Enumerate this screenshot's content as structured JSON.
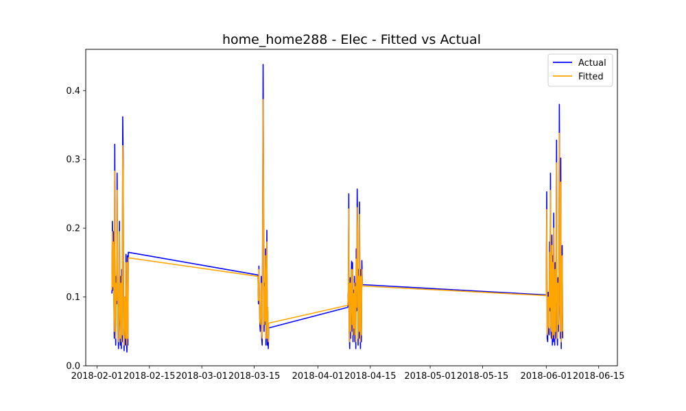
{
  "chart_data": {
    "type": "line",
    "title": "home_home288 - Elec - Fitted vs Actual",
    "xlabel": "",
    "ylabel": "",
    "x_axis": {
      "type": "date",
      "range": [
        "2018-01-29",
        "2018-06-20"
      ],
      "ticks": [
        "2018-02-01",
        "2018-02-15",
        "2018-03-01",
        "2018-03-15",
        "2018-04-01",
        "2018-04-15",
        "2018-05-01",
        "2018-05-15",
        "2018-06-01",
        "2018-06-15"
      ]
    },
    "y_axis": {
      "range": [
        0,
        0.46
      ],
      "ticks": [
        "0.0",
        "0.1",
        "0.2",
        "0.3",
        "0.4"
      ]
    },
    "grid": false,
    "legend_position": "top-right",
    "series": [
      {
        "name": "Actual",
        "color": "#0000ff",
        "points": [
          [
            "2018-02-05T00:00",
            0.105
          ],
          [
            "2018-02-05T03:00",
            0.21
          ],
          [
            "2018-02-05T06:00",
            0.11
          ],
          [
            "2018-02-05T09:00",
            0.195
          ],
          [
            "2018-02-05T12:00",
            0.1
          ],
          [
            "2018-02-05T15:00",
            0.04
          ],
          [
            "2018-02-05T18:00",
            0.322
          ],
          [
            "2018-02-05T21:00",
            0.08
          ],
          [
            "2018-02-06T00:00",
            0.03
          ],
          [
            "2018-02-06T03:00",
            0.13
          ],
          [
            "2018-02-06T06:00",
            0.09
          ],
          [
            "2018-02-06T09:00",
            0.28
          ],
          [
            "2018-02-06T12:00",
            0.15
          ],
          [
            "2018-02-06T15:00",
            0.05
          ],
          [
            "2018-02-06T18:00",
            0.025
          ],
          [
            "2018-02-06T21:00",
            0.06
          ],
          [
            "2018-02-07T00:00",
            0.21
          ],
          [
            "2018-02-07T03:00",
            0.09
          ],
          [
            "2018-02-07T06:00",
            0.03
          ],
          [
            "2018-02-07T09:00",
            0.13
          ],
          [
            "2018-02-07T12:00",
            0.025
          ],
          [
            "2018-02-07T15:00",
            0.14
          ],
          [
            "2018-02-07T18:00",
            0.035
          ],
          [
            "2018-02-07T21:00",
            0.362
          ],
          [
            "2018-02-08T00:00",
            0.3
          ],
          [
            "2018-02-08T03:00",
            0.05
          ],
          [
            "2018-02-08T06:00",
            0.022
          ],
          [
            "2018-02-08T09:00",
            0.1
          ],
          [
            "2018-02-08T12:00",
            0.08
          ],
          [
            "2018-02-08T15:00",
            0.03
          ],
          [
            "2018-02-08T18:00",
            0.162
          ],
          [
            "2018-02-08T21:00",
            0.035
          ],
          [
            "2018-02-09T00:00",
            0.02
          ],
          [
            "2018-02-09T03:00",
            0.16
          ],
          [
            "2018-02-09T06:00",
            0.03
          ],
          [
            "2018-02-09T09:00",
            0.165
          ],
          [
            "2018-03-16T00:00",
            0.132
          ],
          [
            "2018-03-16T03:00",
            0.09
          ],
          [
            "2018-03-16T06:00",
            0.145
          ],
          [
            "2018-03-16T09:00",
            0.1
          ],
          [
            "2018-03-16T12:00",
            0.06
          ],
          [
            "2018-03-16T15:00",
            0.05
          ],
          [
            "2018-03-16T18:00",
            0.08
          ],
          [
            "2018-03-16T21:00",
            0.13
          ],
          [
            "2018-03-17T00:00",
            0.04
          ],
          [
            "2018-03-17T03:00",
            0.03
          ],
          [
            "2018-03-17T06:00",
            0.22
          ],
          [
            "2018-03-17T09:00",
            0.438
          ],
          [
            "2018-03-17T12:00",
            0.26
          ],
          [
            "2018-03-17T15:00",
            0.05
          ],
          [
            "2018-03-17T18:00",
            0.12
          ],
          [
            "2018-03-17T21:00",
            0.06
          ],
          [
            "2018-03-18T00:00",
            0.17
          ],
          [
            "2018-03-18T03:00",
            0.03
          ],
          [
            "2018-03-18T06:00",
            0.09
          ],
          [
            "2018-03-18T09:00",
            0.197
          ],
          [
            "2018-03-18T12:00",
            0.03
          ],
          [
            "2018-03-18T15:00",
            0.08
          ],
          [
            "2018-03-18T18:00",
            0.025
          ],
          [
            "2018-03-18T21:00",
            0.055
          ],
          [
            "2018-04-09T00:00",
            0.085
          ],
          [
            "2018-04-09T03:00",
            0.11
          ],
          [
            "2018-04-09T06:00",
            0.25
          ],
          [
            "2018-04-09T09:00",
            0.05
          ],
          [
            "2018-04-09T12:00",
            0.025
          ],
          [
            "2018-04-09T15:00",
            0.128
          ],
          [
            "2018-04-09T18:00",
            0.04
          ],
          [
            "2018-04-09T21:00",
            0.12
          ],
          [
            "2018-04-10T00:00",
            0.152
          ],
          [
            "2018-04-10T03:00",
            0.05
          ],
          [
            "2018-04-10T06:00",
            0.15
          ],
          [
            "2018-04-10T09:00",
            0.035
          ],
          [
            "2018-04-10T12:00",
            0.11
          ],
          [
            "2018-04-10T15:00",
            0.045
          ],
          [
            "2018-04-10T18:00",
            0.13
          ],
          [
            "2018-04-10T21:00",
            0.035
          ],
          [
            "2018-04-11T00:00",
            0.12
          ],
          [
            "2018-04-11T03:00",
            0.025
          ],
          [
            "2018-04-11T06:00",
            0.17
          ],
          [
            "2018-04-11T09:00",
            0.08
          ],
          [
            "2018-04-11T12:00",
            0.257
          ],
          [
            "2018-04-11T15:00",
            0.2
          ],
          [
            "2018-04-11T18:00",
            0.03
          ],
          [
            "2018-04-11T21:00",
            0.14
          ],
          [
            "2018-04-12T00:00",
            0.04
          ],
          [
            "2018-04-12T03:00",
            0.238
          ],
          [
            "2018-04-12T06:00",
            0.06
          ],
          [
            "2018-04-12T09:00",
            0.025
          ],
          [
            "2018-04-12T12:00",
            0.14
          ],
          [
            "2018-04-12T15:00",
            0.035
          ],
          [
            "2018-04-12T18:00",
            0.153
          ],
          [
            "2018-04-12T21:00",
            0.118
          ],
          [
            "2018-06-01T00:00",
            0.103
          ],
          [
            "2018-06-01T03:00",
            0.253
          ],
          [
            "2018-06-01T06:00",
            0.04
          ],
          [
            "2018-06-01T09:00",
            0.035
          ],
          [
            "2018-06-01T12:00",
            0.107
          ],
          [
            "2018-06-01T15:00",
            0.05
          ],
          [
            "2018-06-01T18:00",
            0.045
          ],
          [
            "2018-06-01T21:00",
            0.18
          ],
          [
            "2018-06-02T00:00",
            0.08
          ],
          [
            "2018-06-02T03:00",
            0.28
          ],
          [
            "2018-06-02T06:00",
            0.05
          ],
          [
            "2018-06-02T09:00",
            0.04
          ],
          [
            "2018-06-02T12:00",
            0.19
          ],
          [
            "2018-06-02T15:00",
            0.03
          ],
          [
            "2018-06-02T18:00",
            0.16
          ],
          [
            "2018-06-02T21:00",
            0.035
          ],
          [
            "2018-06-03T00:00",
            0.222
          ],
          [
            "2018-06-03T03:00",
            0.05
          ],
          [
            "2018-06-03T06:00",
            0.03
          ],
          [
            "2018-06-03T09:00",
            0.15
          ],
          [
            "2018-06-03T12:00",
            0.04
          ],
          [
            "2018-06-03T15:00",
            0.15
          ],
          [
            "2018-06-03T18:00",
            0.328
          ],
          [
            "2018-06-03T21:00",
            0.05
          ],
          [
            "2018-06-04T00:00",
            0.03
          ],
          [
            "2018-06-04T03:00",
            0.128
          ],
          [
            "2018-06-04T06:00",
            0.05
          ],
          [
            "2018-06-04T09:00",
            0.085
          ],
          [
            "2018-06-04T12:00",
            0.38
          ],
          [
            "2018-06-04T15:00",
            0.217
          ],
          [
            "2018-06-04T18:00",
            0.04
          ],
          [
            "2018-06-04T21:00",
            0.302
          ],
          [
            "2018-06-05T00:00",
            0.025
          ],
          [
            "2018-06-05T03:00",
            0.15
          ],
          [
            "2018-06-05T06:00",
            0.175
          ],
          [
            "2018-06-05T09:00",
            0.04
          ]
        ]
      },
      {
        "name": "Fitted",
        "color": "#ffa500",
        "points": [
          [
            "2018-02-05T00:00",
            0.11
          ],
          [
            "2018-02-05T03:00",
            0.195
          ],
          [
            "2018-02-05T06:00",
            0.115
          ],
          [
            "2018-02-05T09:00",
            0.18
          ],
          [
            "2018-02-05T12:00",
            0.105
          ],
          [
            "2018-02-05T15:00",
            0.05
          ],
          [
            "2018-02-05T18:00",
            0.283
          ],
          [
            "2018-02-05T21:00",
            0.09
          ],
          [
            "2018-02-06T00:00",
            0.04
          ],
          [
            "2018-02-06T03:00",
            0.12
          ],
          [
            "2018-02-06T06:00",
            0.095
          ],
          [
            "2018-02-06T09:00",
            0.255
          ],
          [
            "2018-02-06T12:00",
            0.14
          ],
          [
            "2018-02-06T15:00",
            0.06
          ],
          [
            "2018-02-06T18:00",
            0.035
          ],
          [
            "2018-02-06T21:00",
            0.07
          ],
          [
            "2018-02-07T00:00",
            0.195
          ],
          [
            "2018-02-07T03:00",
            0.095
          ],
          [
            "2018-02-07T06:00",
            0.04
          ],
          [
            "2018-02-07T09:00",
            0.12
          ],
          [
            "2018-02-07T12:00",
            0.035
          ],
          [
            "2018-02-07T15:00",
            0.13
          ],
          [
            "2018-02-07T18:00",
            0.045
          ],
          [
            "2018-02-07T21:00",
            0.32
          ],
          [
            "2018-02-08T00:00",
            0.28
          ],
          [
            "2018-02-08T03:00",
            0.06
          ],
          [
            "2018-02-08T06:00",
            0.03
          ],
          [
            "2018-02-08T09:00",
            0.1
          ],
          [
            "2018-02-08T12:00",
            0.085
          ],
          [
            "2018-02-08T15:00",
            0.04
          ],
          [
            "2018-02-08T18:00",
            0.15
          ],
          [
            "2018-02-08T21:00",
            0.045
          ],
          [
            "2018-02-09T00:00",
            0.03
          ],
          [
            "2018-02-09T03:00",
            0.15
          ],
          [
            "2018-02-09T06:00",
            0.04
          ],
          [
            "2018-02-09T09:00",
            0.157
          ],
          [
            "2018-03-16T00:00",
            0.13
          ],
          [
            "2018-03-16T03:00",
            0.095
          ],
          [
            "2018-03-16T06:00",
            0.14
          ],
          [
            "2018-03-16T09:00",
            0.105
          ],
          [
            "2018-03-16T12:00",
            0.065
          ],
          [
            "2018-03-16T15:00",
            0.06
          ],
          [
            "2018-03-16T18:00",
            0.085
          ],
          [
            "2018-03-16T21:00",
            0.12
          ],
          [
            "2018-03-17T00:00",
            0.05
          ],
          [
            "2018-03-17T03:00",
            0.04
          ],
          [
            "2018-03-17T06:00",
            0.2
          ],
          [
            "2018-03-17T09:00",
            0.387
          ],
          [
            "2018-03-17T12:00",
            0.245
          ],
          [
            "2018-03-17T15:00",
            0.06
          ],
          [
            "2018-03-17T18:00",
            0.115
          ],
          [
            "2018-03-17T21:00",
            0.065
          ],
          [
            "2018-03-18T00:00",
            0.16
          ],
          [
            "2018-03-18T03:00",
            0.04
          ],
          [
            "2018-03-18T06:00",
            0.09
          ],
          [
            "2018-03-18T09:00",
            0.18
          ],
          [
            "2018-03-18T12:00",
            0.04
          ],
          [
            "2018-03-18T15:00",
            0.085
          ],
          [
            "2018-03-18T18:00",
            0.035
          ],
          [
            "2018-03-18T21:00",
            0.062
          ],
          [
            "2018-04-09T00:00",
            0.088
          ],
          [
            "2018-04-09T03:00",
            0.105
          ],
          [
            "2018-04-09T06:00",
            0.228
          ],
          [
            "2018-04-09T09:00",
            0.06
          ],
          [
            "2018-04-09T12:00",
            0.035
          ],
          [
            "2018-04-09T15:00",
            0.12
          ],
          [
            "2018-04-09T18:00",
            0.05
          ],
          [
            "2018-04-09T21:00",
            0.115
          ],
          [
            "2018-04-10T00:00",
            0.14
          ],
          [
            "2018-04-10T03:00",
            0.06
          ],
          [
            "2018-04-10T06:00",
            0.14
          ],
          [
            "2018-04-10T09:00",
            0.045
          ],
          [
            "2018-04-10T12:00",
            0.105
          ],
          [
            "2018-04-10T15:00",
            0.055
          ],
          [
            "2018-04-10T18:00",
            0.12
          ],
          [
            "2018-04-10T21:00",
            0.045
          ],
          [
            "2018-04-11T00:00",
            0.115
          ],
          [
            "2018-04-11T03:00",
            0.035
          ],
          [
            "2018-04-11T06:00",
            0.155
          ],
          [
            "2018-04-11T09:00",
            0.085
          ],
          [
            "2018-04-11T12:00",
            0.23
          ],
          [
            "2018-04-11T15:00",
            0.19
          ],
          [
            "2018-04-11T18:00",
            0.04
          ],
          [
            "2018-04-11T21:00",
            0.13
          ],
          [
            "2018-04-12T00:00",
            0.05
          ],
          [
            "2018-04-12T03:00",
            0.22
          ],
          [
            "2018-04-12T06:00",
            0.065
          ],
          [
            "2018-04-12T09:00",
            0.035
          ],
          [
            "2018-04-12T12:00",
            0.13
          ],
          [
            "2018-04-12T15:00",
            0.045
          ],
          [
            "2018-04-12T18:00",
            0.14
          ],
          [
            "2018-04-12T21:00",
            0.116
          ],
          [
            "2018-06-01T00:00",
            0.102
          ],
          [
            "2018-06-01T03:00",
            0.227
          ],
          [
            "2018-06-01T06:00",
            0.05
          ],
          [
            "2018-06-01T09:00",
            0.045
          ],
          [
            "2018-06-01T12:00",
            0.1
          ],
          [
            "2018-06-01T15:00",
            0.06
          ],
          [
            "2018-06-01T18:00",
            0.055
          ],
          [
            "2018-06-01T21:00",
            0.165
          ],
          [
            "2018-06-02T00:00",
            0.085
          ],
          [
            "2018-06-02T03:00",
            0.255
          ],
          [
            "2018-06-02T06:00",
            0.06
          ],
          [
            "2018-06-02T09:00",
            0.05
          ],
          [
            "2018-06-02T12:00",
            0.175
          ],
          [
            "2018-06-02T15:00",
            0.04
          ],
          [
            "2018-06-02T18:00",
            0.15
          ],
          [
            "2018-06-02T21:00",
            0.045
          ],
          [
            "2018-06-03T00:00",
            0.2
          ],
          [
            "2018-06-03T03:00",
            0.06
          ],
          [
            "2018-06-03T06:00",
            0.04
          ],
          [
            "2018-06-03T09:00",
            0.14
          ],
          [
            "2018-06-03T12:00",
            0.05
          ],
          [
            "2018-06-03T15:00",
            0.14
          ],
          [
            "2018-06-03T18:00",
            0.295
          ],
          [
            "2018-06-03T21:00",
            0.06
          ],
          [
            "2018-06-04T00:00",
            0.04
          ],
          [
            "2018-06-04T03:00",
            0.12
          ],
          [
            "2018-06-04T06:00",
            0.06
          ],
          [
            "2018-06-04T09:00",
            0.09
          ],
          [
            "2018-06-04T12:00",
            0.338
          ],
          [
            "2018-06-04T15:00",
            0.2
          ],
          [
            "2018-06-04T18:00",
            0.05
          ],
          [
            "2018-06-04T21:00",
            0.267
          ],
          [
            "2018-06-05T00:00",
            0.035
          ],
          [
            "2018-06-05T03:00",
            0.14
          ],
          [
            "2018-06-05T06:00",
            0.16
          ],
          [
            "2018-06-05T09:00",
            0.05
          ]
        ]
      }
    ]
  }
}
